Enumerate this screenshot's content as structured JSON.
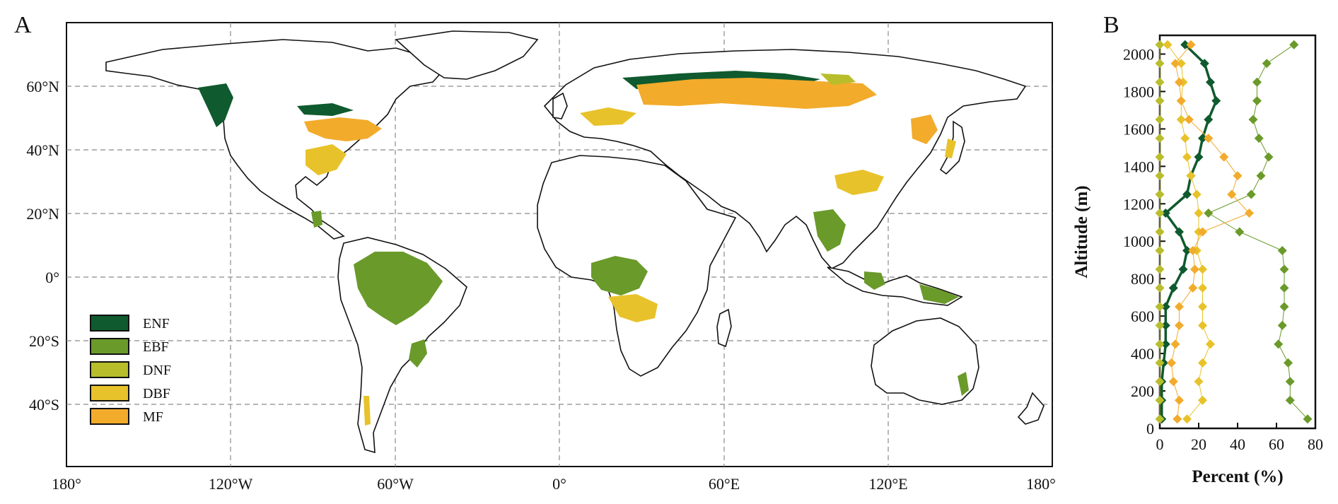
{
  "panels": {
    "a": {
      "label": "A"
    },
    "b": {
      "label": "B"
    }
  },
  "map": {
    "lon_ticks": [
      "180°",
      "120°W",
      "60°W",
      "0°",
      "60°E",
      "120°E",
      "180°"
    ],
    "lat_ticks": [
      "60°N",
      "40°N",
      "20°N",
      "0°",
      "20°S",
      "40°S"
    ],
    "legend": [
      {
        "name": "ENF",
        "color": "#0f5a2e"
      },
      {
        "name": "EBF",
        "color": "#6a9a2a"
      },
      {
        "name": "DNF",
        "color": "#b8bd2c"
      },
      {
        "name": "DBF",
        "color": "#e8c22a"
      },
      {
        "name": "MF",
        "color": "#f2ab2b"
      }
    ]
  },
  "chart_data": {
    "type": "line",
    "xlabel": "Percent (%)",
    "ylabel": "Altitude (m)",
    "xlim": [
      0,
      80
    ],
    "ylim": [
      0,
      2100
    ],
    "x_ticks": [
      0,
      20,
      40,
      60,
      80
    ],
    "y_ticks": [
      0,
      200,
      400,
      600,
      800,
      1000,
      1200,
      1400,
      1600,
      1800,
      2000
    ],
    "altitude": [
      50,
      150,
      250,
      350,
      450,
      550,
      650,
      750,
      850,
      950,
      1050,
      1150,
      1250,
      1350,
      1450,
      1550,
      1650,
      1750,
      1850,
      1950,
      2050
    ],
    "series": [
      {
        "name": "ENF",
        "color": "#0f5a2e",
        "bold": true,
        "values": [
          1,
          1,
          1,
          2,
          3,
          3,
          3,
          7,
          12,
          14,
          10,
          3,
          14,
          16,
          20,
          22,
          25,
          29,
          26,
          23,
          13
        ]
      },
      {
        "name": "EBF",
        "color": "#6a9a2a",
        "bold": false,
        "values": [
          76,
          67,
          67,
          66,
          61,
          63,
          64,
          64,
          64,
          63,
          41,
          25,
          47,
          52,
          56,
          51,
          48,
          50,
          50,
          55,
          69
        ]
      },
      {
        "name": "DNF",
        "color": "#b8bd2c",
        "bold": false,
        "values": [
          0,
          0,
          0,
          0,
          0,
          0,
          0,
          0,
          0,
          0,
          0,
          0,
          0,
          0,
          0,
          0,
          0,
          0,
          0,
          0,
          0
        ]
      },
      {
        "name": "DBF",
        "color": "#e8c22a",
        "bold": false,
        "values": [
          14,
          22,
          20,
          22,
          26,
          22,
          22,
          22,
          22,
          19,
          20,
          20,
          19,
          16,
          14,
          13,
          11,
          11,
          12,
          11,
          4
        ]
      },
      {
        "name": "MF",
        "color": "#f2ab2b",
        "bold": false,
        "values": [
          9,
          10,
          7,
          6,
          8,
          10,
          10,
          17,
          18,
          17,
          22,
          46,
          37,
          40,
          33,
          25,
          15,
          11,
          10,
          8,
          16
        ]
      }
    ]
  }
}
